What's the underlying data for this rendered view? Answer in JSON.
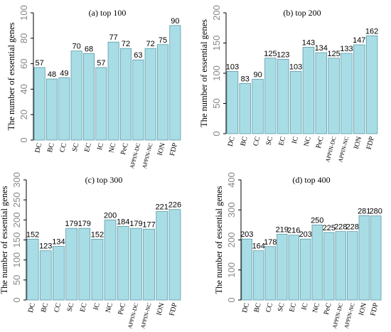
{
  "chart_data": [
    {
      "type": "bar",
      "title": "(a)  top 100",
      "ylabel": "The number of essential genes",
      "categories": [
        "DC",
        "BC",
        "CC",
        "SC",
        "EC",
        "IC",
        "NC",
        "PeC",
        "APPIN-DC",
        "APPIN-NC",
        "ION",
        "FDP"
      ],
      "values": [
        57,
        48,
        49,
        70,
        68,
        57,
        77,
        72,
        63,
        72,
        75,
        90
      ],
      "ylim": [
        0,
        100
      ],
      "yticks": [
        0,
        20,
        40,
        60,
        80,
        100
      ],
      "bar_color": "#a9dde6"
    },
    {
      "type": "bar",
      "title": "(b)  top 200",
      "ylabel": "The number of essential genes",
      "categories": [
        "DC",
        "BC",
        "CC",
        "SC",
        "EC",
        "IC",
        "NC",
        "PeC",
        "APPIN-DC",
        "APPIN-NC",
        "ION",
        "FDP"
      ],
      "values": [
        103,
        83,
        90,
        125,
        123,
        103,
        143,
        134,
        125,
        133,
        147,
        162
      ],
      "ylim": [
        0,
        200
      ],
      "yticks": [
        0,
        50,
        100,
        150,
        200
      ],
      "bar_color": "#a9dde6"
    },
    {
      "type": "bar",
      "title": "(c)  top 300",
      "ylabel": "The number of essential genes",
      "categories": [
        "DC",
        "BC",
        "CC",
        "SC",
        "EC",
        "IC",
        "NC",
        "PeC",
        "APPIN-DC",
        "APPIN-NC",
        "ION",
        "FDP"
      ],
      "values": [
        152,
        123,
        134,
        179,
        179,
        152,
        200,
        184,
        179,
        177,
        221,
        226
      ],
      "ylim": [
        0,
        300
      ],
      "yticks": [
        0,
        50,
        100,
        150,
        200,
        250,
        300
      ],
      "bar_color": "#a9dde6"
    },
    {
      "type": "bar",
      "title": "(d)  top 400",
      "ylabel": "The number of essential genes",
      "categories": [
        "DC",
        "BC",
        "CC",
        "SC",
        "EC",
        "IC",
        "NC",
        "PeC",
        "APPIN-DC",
        "APPIN-NC",
        "ION",
        "FDP"
      ],
      "values": [
        203,
        164,
        178,
        219,
        216,
        203,
        250,
        225,
        228,
        228,
        281,
        280
      ],
      "ylim": [
        0,
        400
      ],
      "yticks": [
        0,
        100,
        200,
        300,
        400
      ],
      "bar_color": "#a9dde6"
    }
  ]
}
